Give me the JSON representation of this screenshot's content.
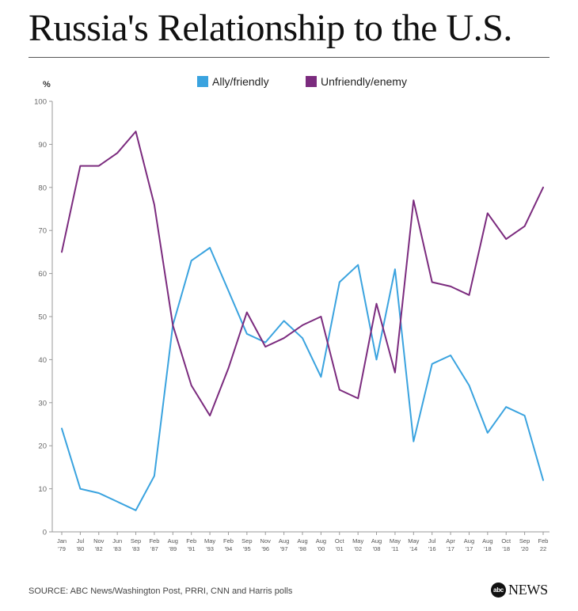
{
  "header": {
    "title": "Russia's Relationship to the U.S."
  },
  "footer": {
    "source": "SOURCE: ABC News/Washington Post, PRRI, CNN and Harris polls",
    "brand_logo_text": "abc",
    "brand_word": "NEWS"
  },
  "chart_data": {
    "type": "line",
    "ylabel": "%",
    "xlabel": "",
    "ylim": [
      0,
      100
    ],
    "yticks": [
      0,
      10,
      20,
      30,
      40,
      50,
      60,
      70,
      80,
      90,
      100
    ],
    "grid": false,
    "legend_position": "top-center",
    "categories": [
      [
        "Jan",
        "'79"
      ],
      [
        "Jul",
        "'80"
      ],
      [
        "Nov",
        "'82"
      ],
      [
        "Jun",
        "'83"
      ],
      [
        "Sep",
        "'83"
      ],
      [
        "Feb",
        "'87"
      ],
      [
        "Aug",
        "'89"
      ],
      [
        "Feb",
        "'91"
      ],
      [
        "May",
        "'93"
      ],
      [
        "Feb",
        "'94"
      ],
      [
        "Sep",
        "'95"
      ],
      [
        "Nov",
        "'96"
      ],
      [
        "Aug",
        "'97"
      ],
      [
        "Aug",
        "'98"
      ],
      [
        "Aug",
        "'00"
      ],
      [
        "Oct",
        "'01"
      ],
      [
        "May",
        "'02"
      ],
      [
        "Aug",
        "'08"
      ],
      [
        "May",
        "'11"
      ],
      [
        "May",
        "'14"
      ],
      [
        "Jul",
        "'16"
      ],
      [
        "Apr",
        "'17"
      ],
      [
        "Aug",
        "'17"
      ],
      [
        "Aug",
        "'18"
      ],
      [
        "Oct",
        "'18"
      ],
      [
        "Sep",
        "'20"
      ],
      [
        "Feb",
        "22"
      ]
    ],
    "series": [
      {
        "name": "Ally/friendly",
        "color": "#3AA3DF",
        "values": [
          24,
          10,
          9,
          7,
          5,
          13,
          48,
          63,
          66,
          56,
          46,
          44,
          49,
          45,
          36,
          58,
          62,
          40,
          61,
          21,
          39,
          41,
          34,
          23,
          29,
          27,
          12
        ]
      },
      {
        "name": "Unfriendly/enemy",
        "color": "#7B2B7E",
        "values": [
          65,
          85,
          85,
          88,
          93,
          76,
          48,
          34,
          27,
          38,
          51,
          43,
          45,
          48,
          50,
          33,
          31,
          53,
          37,
          77,
          58,
          57,
          55,
          74,
          68,
          71,
          80
        ]
      }
    ]
  }
}
